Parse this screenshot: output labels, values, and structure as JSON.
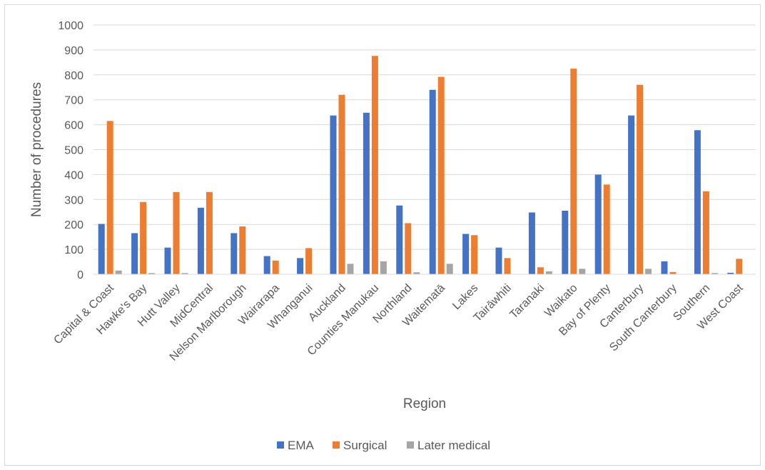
{
  "chart_data": {
    "type": "bar",
    "title": "",
    "xlabel": "Region",
    "ylabel": "Number of procedures",
    "ylim": [
      0,
      1000
    ],
    "yticks": [
      0,
      100,
      200,
      300,
      400,
      500,
      600,
      700,
      800,
      900,
      1000
    ],
    "grid": true,
    "legend_position": "bottom",
    "categories": [
      "Capital & Coast",
      "Hawke's Bay",
      "Hutt Valley",
      "MidCentral",
      "Nelson Marlborough",
      "Wairarapa",
      "Whanganui",
      "Auckland",
      "Counties Manukau",
      "Northland",
      "Waitematā",
      "Lakes",
      "Tairāwhiti",
      "Taranaki",
      "Waikato",
      "Bay of Plenty",
      "Canterbury",
      "South Canterbury",
      "Southern",
      "West Coast"
    ],
    "series": [
      {
        "name": "EMA",
        "color": "#4472c4",
        "values": [
          202,
          165,
          107,
          267,
          165,
          73,
          65,
          637,
          648,
          276,
          740,
          162,
          107,
          248,
          255,
          400,
          637,
          52,
          578,
          6
        ]
      },
      {
        "name": "Surgical",
        "color": "#ed7d31",
        "values": [
          615,
          290,
          330,
          330,
          192,
          55,
          105,
          720,
          876,
          205,
          792,
          157,
          65,
          28,
          825,
          360,
          760,
          9,
          333,
          62
        ]
      },
      {
        "name": "Later medical",
        "color": "#a5a5a5",
        "values": [
          15,
          5,
          5,
          0,
          0,
          0,
          0,
          42,
          52,
          8,
          42,
          0,
          0,
          12,
          22,
          0,
          22,
          0,
          5,
          0
        ]
      }
    ]
  }
}
